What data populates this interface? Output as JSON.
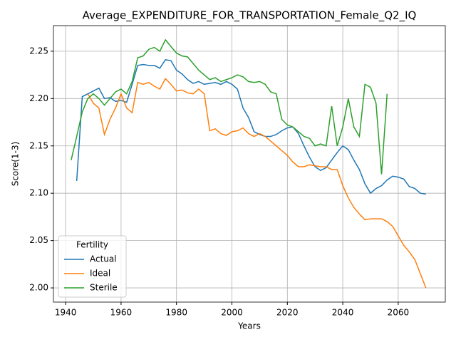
{
  "chart_data": {
    "type": "line",
    "title": "Average_EXPENDITURE_FOR_TRANSPORTATION_Female_Q2_IQ",
    "x_label": "Years",
    "y_label": "Score(1-3)",
    "legend_title": "Fertility",
    "legend_loc": "lower left",
    "grid": true,
    "xlim": [
      1935.6,
      2077.0
    ],
    "ylim": [
      1.985,
      2.277
    ],
    "xticks": [
      1940,
      1960,
      1980,
      2000,
      2020,
      2040,
      2060
    ],
    "yticks": [
      {
        "value": 2.0,
        "label": "2.00"
      },
      2.05,
      {
        "value": 2.1,
        "label": "2.10"
      },
      2.15,
      {
        "value": 2.2,
        "label": "2.20"
      },
      2.25
    ],
    "x": [
      1942,
      1944,
      1946,
      1948,
      1950,
      1952,
      1954,
      1956,
      1958,
      1960,
      1962,
      1964,
      1966,
      1968,
      1970,
      1972,
      1974,
      1976,
      1978,
      1980,
      1982,
      1984,
      1986,
      1988,
      1990,
      1992,
      1994,
      1996,
      1998,
      2000,
      2002,
      2004,
      2006,
      2008,
      2010,
      2012,
      2014,
      2016,
      2018,
      2020,
      2022,
      2024,
      2026,
      2028,
      2030,
      2032,
      2034,
      2036,
      2038,
      2040,
      2042,
      2044,
      2046,
      2048,
      2050,
      2052,
      2054,
      2056,
      2058,
      2060,
      2062,
      2064,
      2066,
      2068,
      2070
    ],
    "series": [
      {
        "name": "Actual",
        "color": "#1f77b4",
        "values": [
          null,
          2.113,
          2.202,
          2.205,
          2.208,
          2.211,
          2.2,
          2.201,
          2.197,
          2.198,
          2.196,
          2.215,
          2.235,
          2.236,
          2.235,
          2.235,
          2.232,
          2.241,
          2.24,
          2.23,
          2.226,
          2.22,
          2.216,
          2.218,
          2.215,
          2.216,
          2.217,
          2.215,
          2.218,
          2.215,
          2.21,
          2.19,
          2.18,
          2.165,
          2.162,
          2.16,
          2.16,
          2.162,
          2.166,
          2.169,
          2.17,
          2.163,
          2.15,
          2.138,
          2.128,
          2.124,
          2.127,
          2.135,
          2.143,
          2.15,
          2.146,
          2.135,
          2.125,
          2.11,
          2.1,
          2.105,
          2.108,
          2.114,
          2.118,
          2.117,
          2.115,
          2.107,
          2.105,
          2.1,
          2.099
        ]
      },
      {
        "name": "Ideal",
        "color": "#ff7f0e",
        "values": [
          null,
          null,
          null,
          2.205,
          2.195,
          2.19,
          2.162,
          2.178,
          2.19,
          2.205,
          2.19,
          2.185,
          2.217,
          2.215,
          2.217,
          2.213,
          2.21,
          2.221,
          2.215,
          2.208,
          2.209,
          2.206,
          2.205,
          2.21,
          2.205,
          2.166,
          2.168,
          2.163,
          2.161,
          2.165,
          2.166,
          2.169,
          2.163,
          2.16,
          2.163,
          2.16,
          2.155,
          2.15,
          2.145,
          2.14,
          2.133,
          2.128,
          2.128,
          2.13,
          2.129,
          2.128,
          2.128,
          2.125,
          2.125,
          2.108,
          2.095,
          2.085,
          2.078,
          2.072,
          2.073,
          2.073,
          2.073,
          2.07,
          2.065,
          2.055,
          2.045,
          2.038,
          2.03,
          2.015,
          2.0
        ]
      },
      {
        "name": "Sterile",
        "color": "#2ca02c",
        "values": [
          2.135,
          2.16,
          2.186,
          2.2,
          2.205,
          2.2,
          2.193,
          2.2,
          2.207,
          2.21,
          2.205,
          2.218,
          2.243,
          2.245,
          2.252,
          2.254,
          2.25,
          2.262,
          2.255,
          2.248,
          2.245,
          2.244,
          2.237,
          2.23,
          2.225,
          2.22,
          2.222,
          2.218,
          2.22,
          2.222,
          2.225,
          2.223,
          2.218,
          2.217,
          2.218,
          2.215,
          2.207,
          2.205,
          2.178,
          2.172,
          2.17,
          2.165,
          2.16,
          2.158,
          2.15,
          2.152,
          2.15,
          2.192,
          2.15,
          2.17,
          2.2,
          2.17,
          2.16,
          2.215,
          2.212,
          2.195,
          2.12,
          2.205,
          null,
          null,
          null,
          null,
          null,
          null,
          null
        ]
      }
    ]
  }
}
